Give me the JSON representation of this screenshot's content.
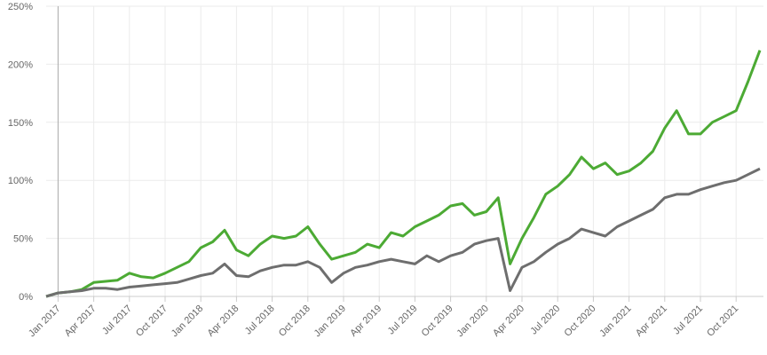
{
  "chart_data": {
    "type": "line",
    "x": [
      "2016-12",
      "2017-01",
      "2017-02",
      "2017-03",
      "2017-04",
      "2017-05",
      "2017-06",
      "2017-07",
      "2017-08",
      "2017-09",
      "2017-10",
      "2017-11",
      "2017-12",
      "2018-01",
      "2018-02",
      "2018-03",
      "2018-04",
      "2018-05",
      "2018-06",
      "2018-07",
      "2018-08",
      "2018-09",
      "2018-10",
      "2018-11",
      "2018-12",
      "2019-01",
      "2019-02",
      "2019-03",
      "2019-04",
      "2019-05",
      "2019-06",
      "2019-07",
      "2019-08",
      "2019-09",
      "2019-10",
      "2019-11",
      "2019-12",
      "2020-01",
      "2020-02",
      "2020-03",
      "2020-04",
      "2020-05",
      "2020-06",
      "2020-07",
      "2020-08",
      "2020-09",
      "2020-10",
      "2020-11",
      "2020-12",
      "2021-01",
      "2021-02",
      "2021-03",
      "2021-04",
      "2021-05",
      "2021-06",
      "2021-07",
      "2021-08",
      "2021-09",
      "2021-10",
      "2021-11",
      "2021-12"
    ],
    "series": [
      {
        "color": "#4caa34",
        "values": [
          0,
          3,
          4,
          6,
          12,
          13,
          14,
          20,
          17,
          16,
          20,
          25,
          30,
          42,
          47,
          57,
          40,
          35,
          45,
          52,
          50,
          52,
          60,
          45,
          32,
          35,
          38,
          45,
          42,
          55,
          52,
          60,
          65,
          70,
          78,
          80,
          70,
          73,
          85,
          28,
          50,
          68,
          88,
          95,
          105,
          120,
          110,
          115,
          105,
          108,
          115,
          125,
          145,
          160,
          140,
          140,
          150,
          155,
          160,
          185,
          212
        ]
      },
      {
        "color": "#6e6e6e",
        "values": [
          0,
          3,
          4,
          5,
          7,
          7,
          6,
          8,
          9,
          10,
          11,
          12,
          15,
          18,
          20,
          28,
          18,
          17,
          22,
          25,
          27,
          27,
          30,
          25,
          12,
          20,
          25,
          27,
          30,
          32,
          30,
          28,
          35,
          30,
          35,
          38,
          45,
          48,
          50,
          5,
          25,
          30,
          38,
          45,
          50,
          58,
          55,
          52,
          60,
          65,
          70,
          75,
          85,
          88,
          88,
          92,
          95,
          98,
          100,
          105,
          110
        ]
      }
    ],
    "xlim": [
      "2016-12",
      "2021-12"
    ],
    "xticks": [
      {
        "value": "2017-01",
        "label": "Jan 2017"
      },
      {
        "value": "2017-04",
        "label": "Apr 2017"
      },
      {
        "value": "2017-07",
        "label": "Jul 2017"
      },
      {
        "value": "2017-10",
        "label": "Oct 2017"
      },
      {
        "value": "2018-01",
        "label": "Jan 2018"
      },
      {
        "value": "2018-04",
        "label": "Apr 2018"
      },
      {
        "value": "2018-07",
        "label": "Jul 2018"
      },
      {
        "value": "2018-10",
        "label": "Oct 2018"
      },
      {
        "value": "2019-01",
        "label": "Jan 2019"
      },
      {
        "value": "2019-04",
        "label": "Apr 2019"
      },
      {
        "value": "2019-07",
        "label": "Jul 2019"
      },
      {
        "value": "2019-10",
        "label": "Oct 2019"
      },
      {
        "value": "2020-01",
        "label": "Jan 2020"
      },
      {
        "value": "2020-04",
        "label": "Apr 2020"
      },
      {
        "value": "2020-07",
        "label": "Jul 2020"
      },
      {
        "value": "2020-10",
        "label": "Oct 2020"
      },
      {
        "value": "2021-01",
        "label": "Jan 2021"
      },
      {
        "value": "2021-04",
        "label": "Apr 2021"
      },
      {
        "value": "2021-07",
        "label": "Jul 2021"
      },
      {
        "value": "2021-10",
        "label": "Oct 2021"
      }
    ],
    "ylim": [
      0,
      250
    ],
    "yticks": [
      {
        "value": 0,
        "label": "0%"
      },
      {
        "value": 50,
        "label": "50%"
      },
      {
        "value": 100,
        "label": "100%"
      },
      {
        "value": 150,
        "label": "150%"
      },
      {
        "value": 200,
        "label": "200%"
      },
      {
        "value": 250,
        "label": "250%"
      }
    ],
    "grid": true
  }
}
